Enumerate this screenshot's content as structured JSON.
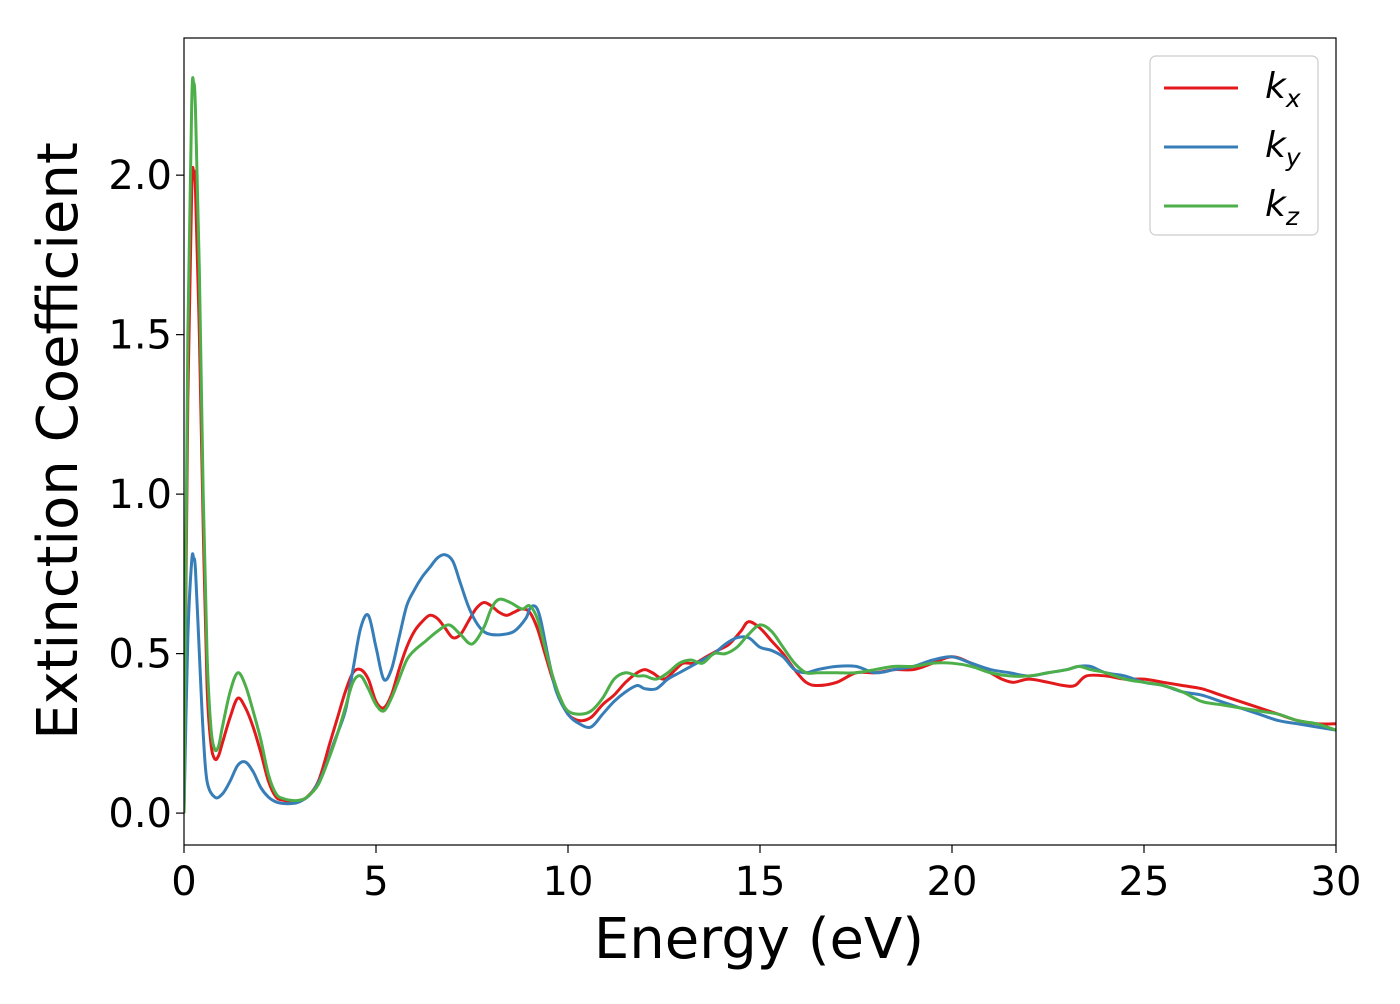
{
  "chart_data": {
    "type": "line",
    "title": "",
    "xlabel": "Energy (eV)",
    "ylabel": "Extinction Coefficient",
    "xlim": [
      0,
      30
    ],
    "ylim": [
      -0.1,
      2.43
    ],
    "xticks": [
      0,
      5,
      10,
      15,
      20,
      25,
      30
    ],
    "xtick_labels": [
      "0",
      "5",
      "10",
      "15",
      "20",
      "25",
      "30"
    ],
    "yticks": [
      0.0,
      0.5,
      1.0,
      1.5,
      2.0
    ],
    "ytick_labels": [
      "0.0",
      "0.5",
      "1.0",
      "1.5",
      "2.0"
    ],
    "grid": false,
    "legend_position": "top-right",
    "series": [
      {
        "name": "k",
        "subscript": "x",
        "color": "#e31a1c",
        "x": [
          0,
          0.1,
          0.2,
          0.25,
          0.3,
          0.4,
          0.5,
          0.6,
          0.7,
          0.8,
          0.9,
          1.0,
          1.2,
          1.4,
          1.6,
          1.8,
          2.0,
          2.2,
          2.4,
          2.6,
          2.8,
          3.0,
          3.2,
          3.5,
          3.8,
          4.0,
          4.2,
          4.4,
          4.6,
          4.8,
          5.0,
          5.2,
          5.4,
          5.6,
          5.8,
          6.0,
          6.2,
          6.4,
          6.6,
          6.8,
          7.0,
          7.2,
          7.4,
          7.6,
          7.8,
          8.0,
          8.2,
          8.4,
          8.6,
          8.8,
          9.0,
          9.2,
          9.4,
          9.6,
          9.8,
          10.0,
          10.3,
          10.6,
          10.9,
          11.2,
          11.5,
          11.8,
          12.0,
          12.2,
          12.5,
          12.8,
          13.0,
          13.3,
          13.6,
          13.9,
          14.2,
          14.5,
          14.7,
          15.0,
          15.3,
          15.6,
          15.9,
          16.2,
          16.5,
          17.0,
          17.5,
          18.0,
          18.5,
          19.0,
          19.5,
          20.0,
          20.5,
          21.0,
          21.3,
          21.6,
          22.0,
          22.5,
          22.9,
          23.2,
          23.5,
          24.0,
          24.5,
          25.0,
          25.5,
          26.0,
          26.5,
          27.0,
          27.5,
          28.0,
          28.5,
          29.0,
          29.5,
          30.0
        ],
        "values": [
          0.0,
          1.3,
          1.95,
          2.01,
          1.95,
          1.5,
          0.9,
          0.4,
          0.22,
          0.17,
          0.18,
          0.22,
          0.3,
          0.36,
          0.33,
          0.27,
          0.19,
          0.1,
          0.05,
          0.04,
          0.035,
          0.04,
          0.05,
          0.1,
          0.22,
          0.3,
          0.38,
          0.44,
          0.45,
          0.42,
          0.35,
          0.33,
          0.37,
          0.45,
          0.52,
          0.57,
          0.6,
          0.62,
          0.61,
          0.58,
          0.55,
          0.56,
          0.6,
          0.64,
          0.66,
          0.65,
          0.63,
          0.62,
          0.63,
          0.64,
          0.63,
          0.58,
          0.5,
          0.42,
          0.36,
          0.31,
          0.29,
          0.3,
          0.34,
          0.37,
          0.41,
          0.44,
          0.45,
          0.44,
          0.42,
          0.45,
          0.47,
          0.47,
          0.49,
          0.51,
          0.53,
          0.57,
          0.6,
          0.58,
          0.54,
          0.5,
          0.45,
          0.41,
          0.4,
          0.41,
          0.44,
          0.44,
          0.45,
          0.45,
          0.47,
          0.49,
          0.47,
          0.44,
          0.42,
          0.41,
          0.42,
          0.41,
          0.4,
          0.4,
          0.43,
          0.43,
          0.42,
          0.42,
          0.41,
          0.4,
          0.39,
          0.37,
          0.35,
          0.33,
          0.31,
          0.29,
          0.28,
          0.28
        ]
      },
      {
        "name": "k",
        "subscript": "y",
        "color": "#377eb8",
        "x": [
          0,
          0.1,
          0.2,
          0.25,
          0.3,
          0.4,
          0.5,
          0.6,
          0.8,
          1.0,
          1.2,
          1.4,
          1.6,
          1.8,
          2.0,
          2.2,
          2.4,
          2.6,
          2.8,
          3.0,
          3.3,
          3.6,
          3.9,
          4.2,
          4.4,
          4.6,
          4.8,
          5.0,
          5.2,
          5.4,
          5.6,
          5.8,
          6.0,
          6.2,
          6.4,
          6.6,
          6.8,
          7.0,
          7.2,
          7.4,
          7.6,
          7.8,
          8.0,
          8.3,
          8.6,
          8.9,
          9.0,
          9.1,
          9.2,
          9.3,
          9.5,
          9.7,
          10.0,
          10.3,
          10.6,
          10.9,
          11.2,
          11.5,
          11.8,
          12.0,
          12.3,
          12.6,
          12.9,
          13.2,
          13.5,
          13.8,
          14.1,
          14.4,
          14.7,
          15.0,
          15.3,
          15.6,
          15.9,
          16.2,
          16.5,
          17.0,
          17.5,
          18.0,
          18.5,
          19.0,
          19.5,
          20.0,
          20.5,
          21.0,
          21.5,
          22.0,
          22.5,
          23.0,
          23.3,
          23.6,
          24.0,
          24.5,
          25.0,
          25.5,
          26.0,
          26.5,
          27.0,
          27.5,
          28.0,
          28.5,
          29.0,
          29.5,
          30.0
        ],
        "values": [
          0.0,
          0.55,
          0.79,
          0.8,
          0.76,
          0.5,
          0.25,
          0.1,
          0.05,
          0.06,
          0.1,
          0.15,
          0.16,
          0.13,
          0.08,
          0.05,
          0.035,
          0.03,
          0.03,
          0.035,
          0.06,
          0.12,
          0.22,
          0.32,
          0.45,
          0.58,
          0.62,
          0.52,
          0.42,
          0.45,
          0.55,
          0.65,
          0.7,
          0.74,
          0.77,
          0.8,
          0.81,
          0.79,
          0.72,
          0.65,
          0.6,
          0.57,
          0.56,
          0.56,
          0.57,
          0.61,
          0.64,
          0.65,
          0.64,
          0.6,
          0.48,
          0.38,
          0.31,
          0.28,
          0.27,
          0.31,
          0.35,
          0.38,
          0.4,
          0.39,
          0.39,
          0.42,
          0.44,
          0.46,
          0.48,
          0.5,
          0.53,
          0.55,
          0.55,
          0.52,
          0.51,
          0.49,
          0.45,
          0.44,
          0.45,
          0.46,
          0.46,
          0.44,
          0.45,
          0.46,
          0.48,
          0.49,
          0.47,
          0.45,
          0.44,
          0.43,
          0.44,
          0.45,
          0.46,
          0.46,
          0.44,
          0.43,
          0.41,
          0.4,
          0.38,
          0.37,
          0.35,
          0.33,
          0.31,
          0.29,
          0.28,
          0.27,
          0.26
        ]
      },
      {
        "name": "k",
        "subscript": "z",
        "color": "#4daf4a",
        "x": [
          0,
          0.1,
          0.2,
          0.25,
          0.3,
          0.4,
          0.5,
          0.6,
          0.7,
          0.8,
          0.9,
          1.0,
          1.2,
          1.4,
          1.6,
          1.8,
          2.0,
          2.2,
          2.4,
          2.6,
          2.8,
          3.0,
          3.2,
          3.5,
          3.8,
          4.0,
          4.2,
          4.4,
          4.6,
          4.8,
          5.0,
          5.2,
          5.4,
          5.6,
          5.8,
          6.0,
          6.3,
          6.6,
          6.9,
          7.2,
          7.5,
          7.8,
          8.0,
          8.2,
          8.5,
          8.8,
          9.0,
          9.2,
          9.4,
          9.6,
          9.8,
          10.0,
          10.3,
          10.6,
          10.9,
          11.2,
          11.5,
          11.8,
          12.0,
          12.3,
          12.6,
          12.9,
          13.2,
          13.5,
          13.8,
          14.1,
          14.4,
          14.7,
          15.0,
          15.3,
          15.6,
          15.9,
          16.2,
          16.5,
          17.0,
          17.5,
          18.0,
          18.5,
          19.0,
          19.5,
          20.0,
          20.5,
          21.0,
          21.5,
          22.0,
          22.5,
          23.0,
          23.3,
          23.6,
          24.0,
          24.5,
          25.0,
          25.5,
          26.0,
          26.5,
          27.0,
          27.5,
          28.0,
          28.5,
          29.0,
          29.5,
          30.0
        ],
        "values": [
          0.0,
          1.5,
          2.22,
          2.29,
          2.2,
          1.7,
          1.0,
          0.5,
          0.27,
          0.2,
          0.21,
          0.27,
          0.38,
          0.44,
          0.4,
          0.32,
          0.23,
          0.12,
          0.06,
          0.045,
          0.04,
          0.04,
          0.05,
          0.09,
          0.18,
          0.25,
          0.33,
          0.41,
          0.43,
          0.39,
          0.34,
          0.32,
          0.36,
          0.42,
          0.48,
          0.51,
          0.54,
          0.57,
          0.59,
          0.56,
          0.53,
          0.58,
          0.64,
          0.67,
          0.66,
          0.64,
          0.65,
          0.61,
          0.52,
          0.43,
          0.36,
          0.32,
          0.31,
          0.32,
          0.36,
          0.42,
          0.44,
          0.43,
          0.43,
          0.42,
          0.44,
          0.47,
          0.48,
          0.47,
          0.5,
          0.5,
          0.52,
          0.56,
          0.59,
          0.57,
          0.52,
          0.47,
          0.44,
          0.44,
          0.44,
          0.44,
          0.45,
          0.46,
          0.46,
          0.47,
          0.47,
          0.46,
          0.44,
          0.43,
          0.43,
          0.44,
          0.45,
          0.46,
          0.45,
          0.44,
          0.42,
          0.41,
          0.4,
          0.38,
          0.35,
          0.34,
          0.33,
          0.32,
          0.31,
          0.29,
          0.28,
          0.26
        ]
      }
    ]
  }
}
